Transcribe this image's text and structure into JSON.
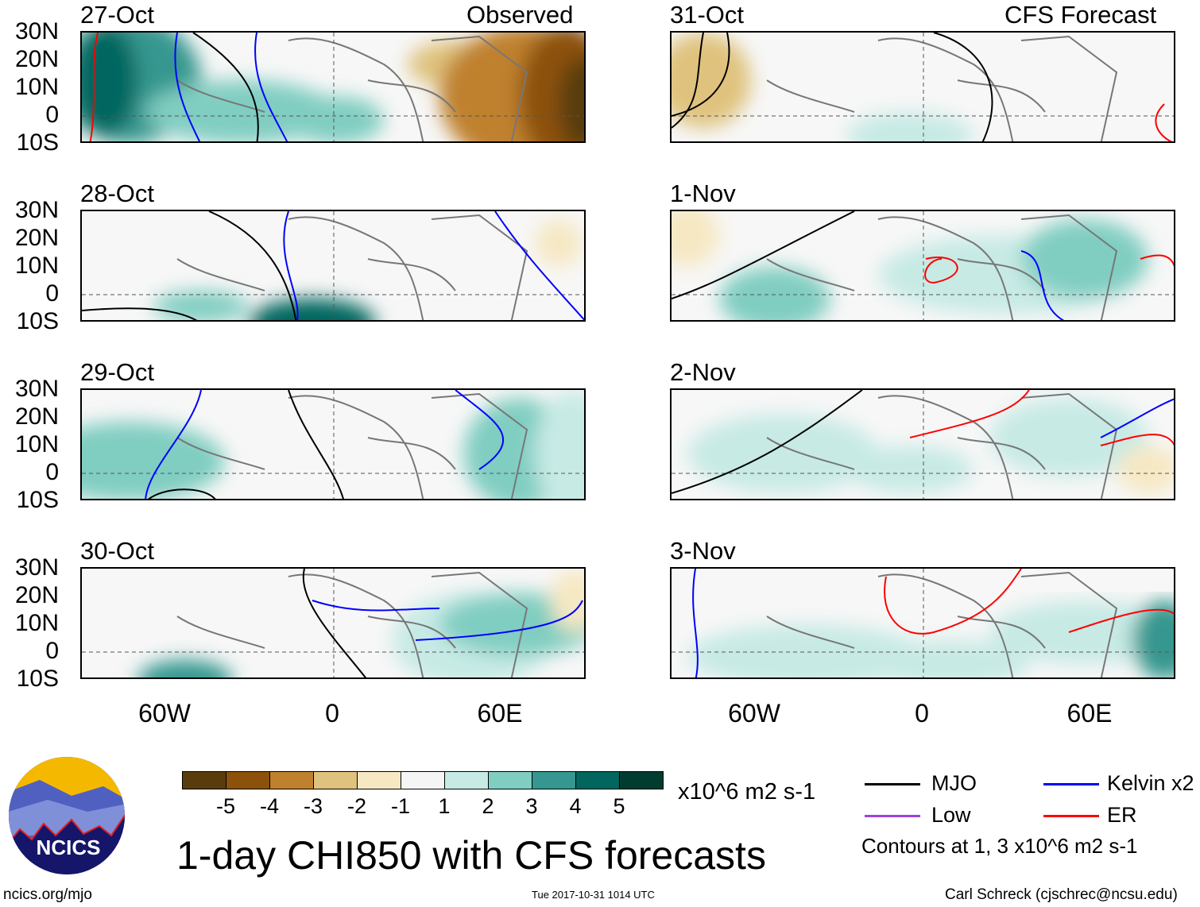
{
  "left_column": {
    "header_right": "Observed",
    "panels": [
      "27-Oct",
      "28-Oct",
      "29-Oct",
      "30-Oct"
    ]
  },
  "right_column": {
    "header_right": "CFS Forecast",
    "panels": [
      "31-Oct",
      "1-Nov",
      "2-Nov",
      "3-Nov"
    ]
  },
  "lat_labels": [
    "30N",
    "20N",
    "10N",
    "0",
    "10S"
  ],
  "lon_labels": [
    "60W",
    "0",
    "60E"
  ],
  "colorbar": {
    "colors": [
      "#593c0c",
      "#8c510a",
      "#bf812d",
      "#dfc27d",
      "#f6e8c3",
      "#f5f5f5",
      "#c7eae5",
      "#80cdc1",
      "#35978f",
      "#01665e",
      "#003c30"
    ],
    "labels": [
      "-5",
      "-4",
      "-3",
      "-2",
      "-1",
      "1",
      "2",
      "3",
      "4",
      "5"
    ],
    "units": "x10^6 m2 s-1"
  },
  "title": "1-day CHI850 with CFS forecasts",
  "legend": {
    "items": [
      {
        "label": "MJO",
        "color": "#000000"
      },
      {
        "label": "Kelvin x2",
        "color": "#0000ff"
      },
      {
        "label": "Low",
        "color": "#a040e0"
      },
      {
        "label": "ER",
        "color": "#ff0000"
      }
    ],
    "note": "Contours at 1, 3 x10^6 m2 s-1"
  },
  "logo_text": "NCICS",
  "footer": {
    "url": "ncics.org/mjo",
    "timestamp": "Tue 2017-10-31 1014 UTC",
    "credit": "Carl Schreck (cjschrec@ncsu.edu)"
  }
}
